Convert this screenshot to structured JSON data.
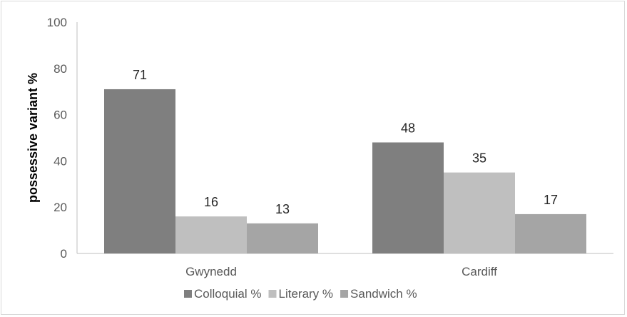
{
  "chart_data": {
    "type": "bar",
    "title": "",
    "xlabel": "",
    "ylabel": "possessive variant %",
    "ylim": [
      0,
      100
    ],
    "yticks": [
      0,
      20,
      40,
      60,
      80,
      100
    ],
    "grid": false,
    "legend_position": "bottom",
    "categories": [
      "Gwynedd",
      "Cardiff"
    ],
    "series": [
      {
        "name": "Colloquial %",
        "values": [
          71,
          48
        ],
        "color": "#7f7f7f"
      },
      {
        "name": "Literary %",
        "values": [
          16,
          35
        ],
        "color": "#bfbfbf"
      },
      {
        "name": "Sandwich %",
        "values": [
          13,
          17
        ],
        "color": "#a5a5a5"
      }
    ],
    "data_labels": [
      [
        "71",
        "16",
        "13"
      ],
      [
        "48",
        "35",
        "17"
      ]
    ]
  }
}
